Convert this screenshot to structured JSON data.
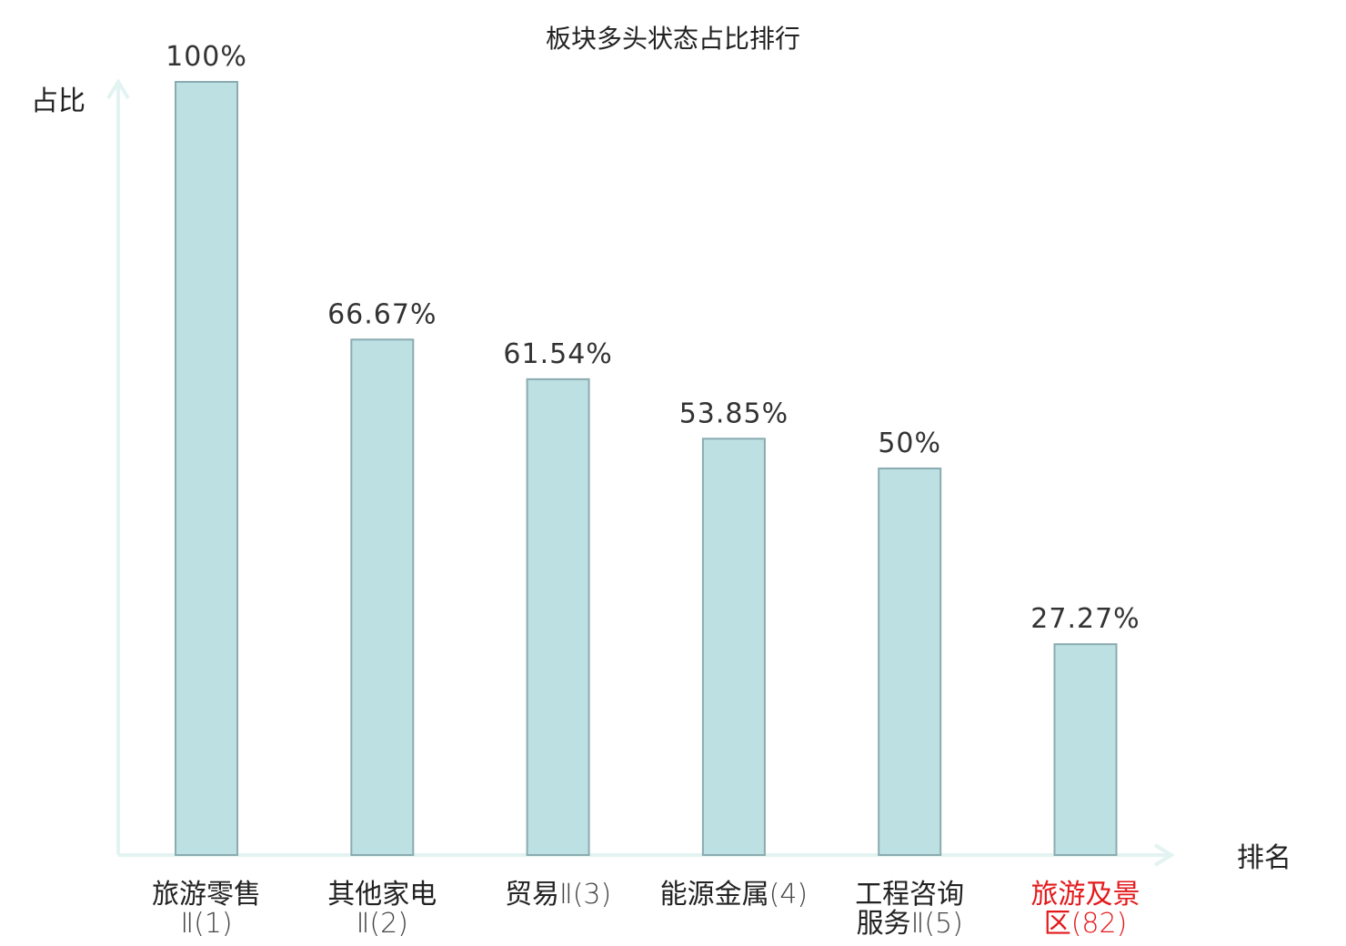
{
  "chart_data": {
    "type": "bar",
    "title": "板块多头状态占比排行",
    "ylabel": "占比",
    "xlabel": "排名",
    "ylim": [
      0,
      100
    ],
    "grid": false,
    "legend": "none",
    "categories": [
      {
        "lines": [
          {
            "zh": "旅游零售",
            "num": ""
          },
          {
            "zh": "",
            "num": "Ⅱ(1)"
          }
        ],
        "highlight": false
      },
      {
        "lines": [
          {
            "zh": "其他家电",
            "num": ""
          },
          {
            "zh": "",
            "num": "Ⅱ(2)"
          }
        ],
        "highlight": false
      },
      {
        "lines": [
          {
            "zh": "贸易",
            "num": "Ⅱ(3)"
          }
        ],
        "highlight": false
      },
      {
        "lines": [
          {
            "zh": "能源金属",
            "num": "(4)"
          }
        ],
        "highlight": false
      },
      {
        "lines": [
          {
            "zh": "工程咨询",
            "num": ""
          },
          {
            "zh": "服务",
            "num": "Ⅱ(5)"
          }
        ],
        "highlight": false
      },
      {
        "lines": [
          {
            "zh": "旅游及景",
            "num": ""
          },
          {
            "zh": "区",
            "num": "(82)"
          }
        ],
        "highlight": true
      }
    ],
    "values": [
      100,
      66.67,
      61.54,
      53.85,
      50,
      27.27
    ],
    "value_labels": [
      "100%",
      "66.67%",
      "61.54%",
      "53.85%",
      "50%",
      "27.27%"
    ]
  },
  "colors": {
    "bar_fill": "#bde0e3",
    "bar_stroke": "#8aabb0",
    "axis": "#e2f3f1",
    "text": "#222222",
    "highlight": "#e31a1c"
  }
}
